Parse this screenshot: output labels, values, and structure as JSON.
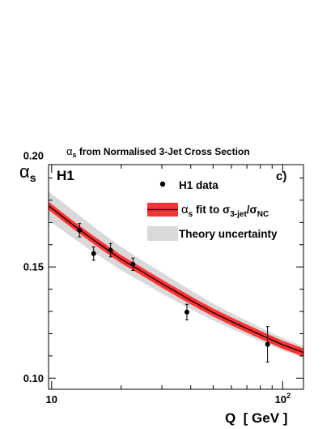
{
  "chart_data": {
    "type": "line",
    "title": "αs from Normalised 3-Jet Cross Section",
    "title_symbol": "α",
    "title_subscript": "s",
    "title_rest": " from Normalised 3-Jet Cross Section",
    "xlabel": "Q  [ GeV ]",
    "ylabel": "αs",
    "ylabel_symbol": "α",
    "ylabel_subscript": "s",
    "experiment_label": "H1",
    "panel_label": "c)",
    "x_scale": "log",
    "xlim": [
      9.7,
      123
    ],
    "ylim": [
      0.095,
      0.196
    ],
    "x_tick_labels": [
      {
        "value": 10,
        "label": "10"
      },
      {
        "value": 100,
        "label": "10",
        "sup": "2"
      }
    ],
    "y_tick_labels": [
      {
        "value": 0.1,
        "label": "0.10"
      },
      {
        "value": 0.15,
        "label": "0.15"
      },
      {
        "value": 0.2,
        "label": "0.20"
      }
    ],
    "legend": {
      "placement": "top-right",
      "entries": [
        {
          "kind": "marker",
          "label": "H1 data"
        },
        {
          "kind": "fit",
          "prefix_symbol": "α",
          "prefix_sub": "s",
          "text": " fit to σ",
          "sub1": "3-jet",
          "slash": "/σ",
          "sub2": "NC"
        },
        {
          "kind": "band",
          "label": "Theory uncertainty"
        }
      ]
    },
    "series": [
      {
        "kind": "data-points",
        "points": [
          {
            "x": 13.2,
            "y": 0.1665,
            "err": 0.003
          },
          {
            "x": 15.2,
            "y": 0.156,
            "err": 0.003
          },
          {
            "x": 18.0,
            "y": 0.1575,
            "err": 0.003
          },
          {
            "x": 22.5,
            "y": 0.1512,
            "err": 0.0028
          },
          {
            "x": 38.5,
            "y": 0.1297,
            "err": 0.0035
          },
          {
            "x": 86.0,
            "y": 0.1152,
            "err": 0.008
          }
        ]
      },
      {
        "kind": "fit-line",
        "x": [
          9.7,
          12,
          15,
          20,
          25,
          30,
          40,
          50,
          60,
          80,
          100,
          123
        ],
        "y": [
          0.1775,
          0.17,
          0.1625,
          0.1535,
          0.1475,
          0.1425,
          0.135,
          0.1295,
          0.1255,
          0.1195,
          0.115,
          0.1115
        ],
        "band_halfwidth": 0.0018,
        "color": "#ff3333"
      },
      {
        "kind": "theory-band",
        "x": [
          9.7,
          12,
          15,
          20,
          25,
          30,
          40,
          50,
          60,
          80,
          100,
          123
        ],
        "y_low": [
          0.171,
          0.164,
          0.157,
          0.1485,
          0.1428,
          0.138,
          0.131,
          0.126,
          0.1222,
          0.1167,
          0.1125,
          0.1092
        ],
        "y_high": [
          0.184,
          0.1765,
          0.1685,
          0.159,
          0.1525,
          0.1475,
          0.1395,
          0.1335,
          0.1292,
          0.1228,
          0.118,
          0.1142
        ],
        "color": "#d9d9d9"
      }
    ]
  }
}
